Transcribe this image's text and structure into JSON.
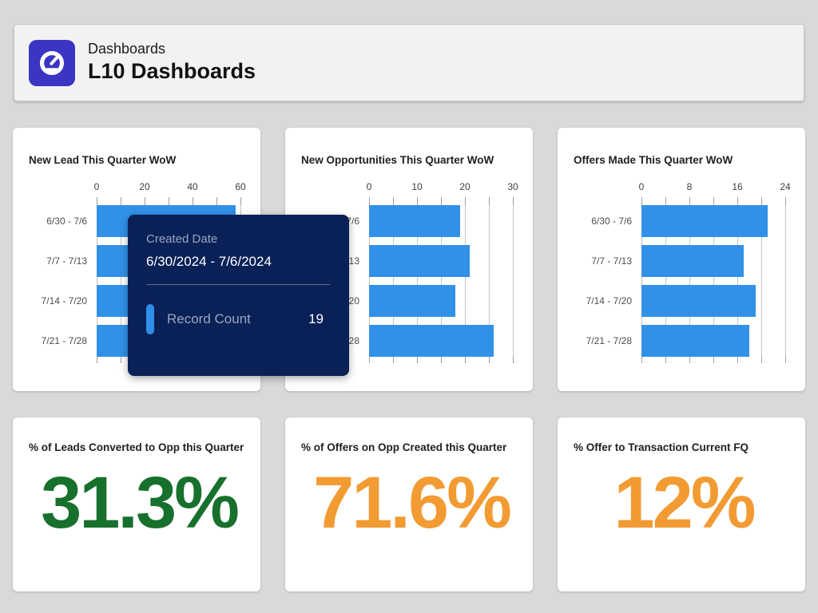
{
  "header": {
    "breadcrumb": "Dashboards",
    "title": "L10 Dashboards",
    "icon": "dashboard-gauge-icon",
    "icon_bg": "#3b35c4"
  },
  "colors": {
    "bar_blue": "#3191e8",
    "positive_green": "#17702c",
    "warning_orange": "#f29b33",
    "tooltip_bg": "#0a2157",
    "page_bg": "#d9d9d9"
  },
  "chart_data": [
    {
      "type": "bar",
      "orientation": "horizontal",
      "title": "New Lead This Quarter WoW",
      "categories": [
        "6/30 - 7/6",
        "7/7 - 7/13",
        "7/14 - 7/20",
        "7/21 - 7/28"
      ],
      "values": [
        58,
        45,
        42,
        46
      ],
      "xlim": [
        0,
        60
      ],
      "tick_labels": [
        "0",
        "20",
        "40",
        "60"
      ],
      "minor_tick_step": 10,
      "grid": "on",
      "legend": "none"
    },
    {
      "type": "bar",
      "orientation": "horizontal",
      "title": "New Opportunities This Quarter WoW",
      "categories": [
        "6/30 - 7/6",
        "7/7 - 7/13",
        "7/14 - 7/20",
        "7/21 - 7/28"
      ],
      "values": [
        19,
        21,
        18,
        26
      ],
      "xlim": [
        0,
        30
      ],
      "tick_labels": [
        "0",
        "10",
        "20",
        "30"
      ],
      "minor_tick_step": 5,
      "grid": "on",
      "legend": "none"
    },
    {
      "type": "bar",
      "orientation": "horizontal",
      "title": "Offers Made This Quarter WoW",
      "categories": [
        "6/30 - 7/6",
        "7/7 - 7/13",
        "7/14 - 7/20",
        "7/21 - 7/28"
      ],
      "values": [
        21,
        17,
        19,
        18
      ],
      "xlim": [
        0,
        24
      ],
      "tick_labels": [
        "0",
        "8",
        "16",
        "24"
      ],
      "minor_tick_step": 4,
      "grid": "on",
      "legend": "none"
    }
  ],
  "tooltip": {
    "field_label": "Created Date",
    "field_value": "6/30/2024 - 7/6/2024",
    "series_label": "Record Count",
    "series_value": "19"
  },
  "metrics": [
    {
      "title": "% of Leads Converted to Opp this Quarter",
      "value": "31.3%",
      "color": "#17702c"
    },
    {
      "title": "% of Offers on Opp Created this Quarter",
      "value": "71.6%",
      "color": "#f29b33"
    },
    {
      "title": "% Offer to Transaction Current FQ",
      "value": "12%",
      "color": "#f29b33"
    }
  ]
}
